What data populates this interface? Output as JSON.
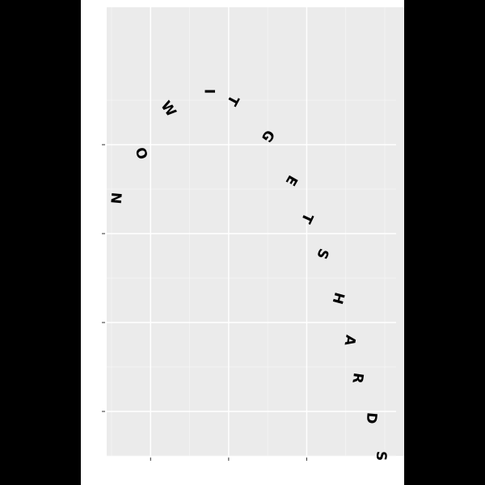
{
  "chart_data": {
    "type": "scatter",
    "title": "",
    "xlabel": "",
    "ylabel": "",
    "xlim": [
      0,
      7
    ],
    "ylim": [
      0,
      10
    ],
    "grid": true,
    "x_major_breaks": [
      1,
      3,
      5
    ],
    "x_minor_breaks": [
      0,
      2,
      4,
      6,
      7
    ],
    "y_major_breaks": [
      1,
      3,
      5,
      7
    ],
    "y_minor_breaks": [
      0,
      2,
      4,
      6,
      8
    ],
    "text_color": "#000000",
    "points": [
      {
        "label": "N",
        "x": 0.1,
        "y": 5.8,
        "angle": 95
      },
      {
        "label": "O",
        "x": 0.75,
        "y": 6.8,
        "angle": 72
      },
      {
        "label": "W",
        "x": 1.45,
        "y": 7.8,
        "angle": 55
      },
      {
        "label": "I",
        "x": 2.5,
        "y": 8.2,
        "angle": 90
      },
      {
        "label": "T",
        "x": 3.1,
        "y": 8.0,
        "angle": 118
      },
      {
        "label": "G",
        "x": 4.0,
        "y": 7.2,
        "angle": 125
      },
      {
        "label": "E",
        "x": 4.6,
        "y": 6.2,
        "angle": 120
      },
      {
        "label": "T",
        "x": 5.0,
        "y": 5.35,
        "angle": 115
      },
      {
        "label": "S",
        "x": 5.4,
        "y": 4.55,
        "angle": 112
      },
      {
        "label": "H",
        "x": 5.8,
        "y": 3.55,
        "angle": 105
      },
      {
        "label": "A",
        "x": 6.1,
        "y": 2.6,
        "angle": 100
      },
      {
        "label": "R",
        "x": 6.3,
        "y": 1.75,
        "angle": 98
      },
      {
        "label": "D",
        "x": 6.65,
        "y": 0.85,
        "angle": 95
      },
      {
        "label": "S",
        "x": 6.9,
        "y": 0.0,
        "angle": 92
      }
    ]
  }
}
